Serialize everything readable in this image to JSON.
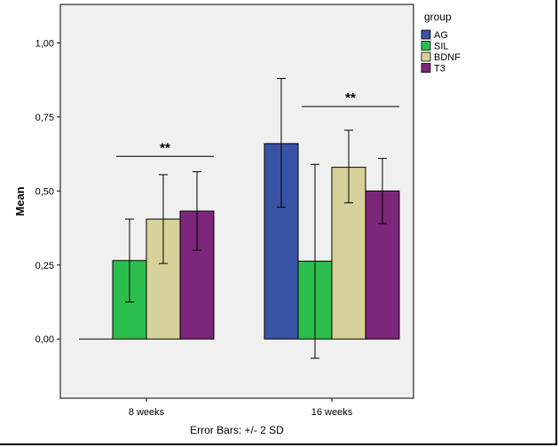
{
  "chart_data": {
    "type": "bar",
    "categories": [
      "8 weeks",
      "16 weeks"
    ],
    "ylabel": "Mean",
    "xlabel": "",
    "footnote": "Error Bars: +/- 2 SD",
    "ylim": [
      -0.2,
      1.13
    ],
    "yticks": [
      0.0,
      0.25,
      0.5,
      0.75,
      1.0
    ],
    "ytick_labels": [
      "0,00",
      "0,25",
      "0,50",
      "0,75",
      "1,00"
    ],
    "legend": {
      "title": "group",
      "position": "top-right-outside"
    },
    "series": [
      {
        "name": "AG",
        "color": "#3953A4",
        "values": [
          0.0,
          0.66
        ],
        "err_low": [
          null,
          0.445
        ],
        "err_high": [
          null,
          0.88
        ]
      },
      {
        "name": "SIL",
        "color": "#2BBE4C",
        "values": [
          0.265,
          0.263
        ],
        "err_low": [
          0.125,
          -0.065
        ],
        "err_high": [
          0.405,
          0.59
        ]
      },
      {
        "name": "BDNF",
        "color": "#D6D29A",
        "values": [
          0.405,
          0.58
        ],
        "err_low": [
          0.255,
          0.46
        ],
        "err_high": [
          0.555,
          0.705
        ]
      },
      {
        "name": "T3",
        "color": "#7B2679",
        "values": [
          0.432,
          0.5
        ],
        "err_low": [
          0.3,
          0.39
        ],
        "err_high": [
          0.565,
          0.61
        ]
      }
    ],
    "annotations": [
      {
        "text": "**",
        "category": "8 weeks",
        "y": 0.617
      },
      {
        "text": "**",
        "category": "16 weeks",
        "y": 0.785
      }
    ],
    "plot_background": "#F0F0F0",
    "grid": false
  }
}
